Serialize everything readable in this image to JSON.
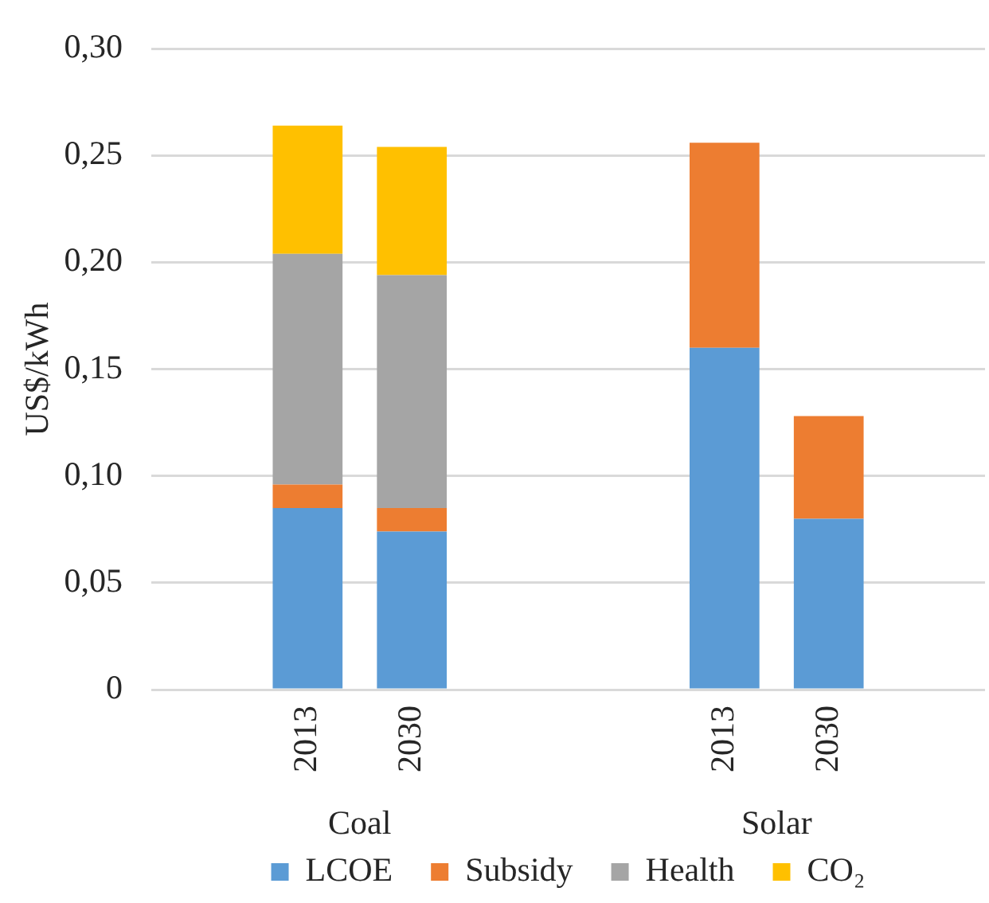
{
  "chart_data": {
    "type": "bar",
    "stacked": true,
    "categories": [
      null,
      "2013",
      "2030",
      null,
      null,
      "2013",
      "2030",
      null
    ],
    "series": [
      {
        "name": "LCOE",
        "color": "#5b9bd5",
        "values": [
          null,
          0.085,
          0.074,
          null,
          null,
          0.16,
          0.08,
          null
        ]
      },
      {
        "name": "Subsidy",
        "color": "#ed7d31",
        "values": [
          null,
          0.011,
          0.011,
          null,
          null,
          0.096,
          0.048,
          null
        ]
      },
      {
        "name": "Health",
        "color": "#a5a5a5",
        "values": [
          null,
          0.108,
          0.109,
          null,
          null,
          null,
          null,
          null
        ]
      },
      {
        "name": "CO₂",
        "color": "#ffc000",
        "values": [
          null,
          0.06,
          0.06,
          null,
          null,
          null,
          null,
          null
        ]
      }
    ],
    "ylabel": "US$/kWh",
    "ylim": [
      0,
      0.3
    ],
    "yticks": [
      0,
      {
        "value": 0.05,
        "label": "0,05"
      },
      {
        "value": 0.1,
        "label": "0,10"
      },
      {
        "value": 0.15,
        "label": "0,15"
      },
      {
        "value": 0.2,
        "label": "0,20"
      },
      {
        "value": 0.25,
        "label": "0,25"
      },
      {
        "value": 0.3,
        "label": "0,30"
      }
    ],
    "annotations": [
      "Coal",
      "Solar"
    ],
    "grid": "y",
    "legend": "bottom"
  }
}
